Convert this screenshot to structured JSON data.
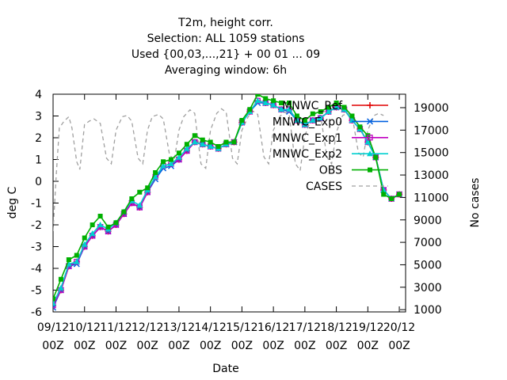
{
  "chart_data": {
    "type": "line",
    "title_lines": [
      "T2m, height corr.",
      "Selection: ALL    1059 stations",
      "Used {00,03,...,21} + 00 01 ... 09",
      "Averaging window:  6h"
    ],
    "xlabel": "Date",
    "ylabel": "deg C",
    "y2label": "No cases",
    "x_ticks": [
      "09/12 00Z",
      "10/12 00Z",
      "11/12 00Z",
      "12/12 00Z",
      "13/12 00Z",
      "14/12 00Z",
      "15/12 00Z",
      "16/12 00Z",
      "17/12 00Z",
      "18/12 00Z",
      "19/12 00Z",
      "20/12 00Z"
    ],
    "x_range_days": [
      0,
      11.2
    ],
    "ylim": [
      -6,
      4
    ],
    "y_ticks": [
      -6,
      -5,
      -4,
      -3,
      -2,
      -1,
      0,
      1,
      2,
      3,
      4
    ],
    "y2lim": [
      800,
      20200
    ],
    "y2_ticks": [
      1000,
      3000,
      5000,
      7000,
      9000,
      11000,
      13000,
      15000,
      17000,
      19000
    ],
    "legend_position": "top-right",
    "series": [
      {
        "name": "MNWC_Ref",
        "color": "#e00000",
        "marker": "plus",
        "x": [
          0,
          0.25,
          0.5,
          0.75,
          1.0,
          1.25,
          1.5,
          1.75,
          2.0,
          2.25,
          2.5,
          2.75,
          3.0,
          3.25,
          3.5,
          3.75,
          4.0,
          4.25,
          4.5,
          4.75,
          5.0,
          5.25,
          5.5,
          5.75,
          6.0,
          6.25,
          6.5,
          6.75,
          7.0,
          7.25,
          7.5,
          7.75,
          8.0,
          8.25,
          8.5,
          8.75,
          9.0,
          9.25,
          9.5,
          9.75,
          10.0,
          10.25,
          10.5,
          10.75,
          11.0
        ],
        "values": [
          -5.7,
          -5.0,
          -3.9,
          -3.7,
          -3.0,
          -2.5,
          -2.1,
          -2.3,
          -2.0,
          -1.5,
          -1.0,
          -1.2,
          -0.5,
          0.2,
          0.7,
          0.8,
          1.0,
          1.4,
          1.8,
          1.7,
          1.6,
          1.5,
          1.7,
          1.8,
          2.7,
          3.2,
          3.7,
          3.6,
          3.5,
          3.3,
          3.3,
          2.8,
          2.6,
          2.8,
          2.9,
          3.2,
          3.4,
          3.3,
          2.8,
          2.4,
          1.8,
          1.1,
          -0.4,
          -0.8,
          -0.6
        ]
      },
      {
        "name": "MNWC_Exp0",
        "color": "#0060e0",
        "marker": "x",
        "x": [
          0,
          0.25,
          0.5,
          0.75,
          1.0,
          1.25,
          1.5,
          1.75,
          2.0,
          2.25,
          2.5,
          2.75,
          3.0,
          3.25,
          3.5,
          3.75,
          4.0,
          4.25,
          4.5,
          4.75,
          5.0,
          5.25,
          5.5,
          5.75,
          6.0,
          6.25,
          6.5,
          6.75,
          7.0,
          7.25,
          7.5,
          7.75,
          8.0,
          8.25,
          8.5,
          8.75,
          9.0,
          9.25,
          9.5,
          9.75,
          10.0,
          10.25,
          10.5,
          10.75,
          11.0
        ],
        "values": [
          -5.8,
          -5.0,
          -3.9,
          -3.8,
          -3.0,
          -2.5,
          -2.1,
          -2.3,
          -2.0,
          -1.5,
          -1.0,
          -1.2,
          -0.5,
          0.1,
          0.6,
          0.7,
          1.0,
          1.4,
          1.8,
          1.7,
          1.6,
          1.5,
          1.7,
          1.8,
          2.7,
          3.2,
          3.6,
          3.6,
          3.5,
          3.3,
          3.2,
          2.8,
          2.6,
          2.8,
          2.9,
          3.2,
          3.4,
          3.3,
          2.8,
          2.4,
          1.8,
          1.1,
          -0.4,
          -0.8,
          -0.6
        ]
      },
      {
        "name": "MNWC_Exp1",
        "color": "#c000c0",
        "marker": "square",
        "x": [
          0,
          0.25,
          0.5,
          0.75,
          1.0,
          1.25,
          1.5,
          1.75,
          2.0,
          2.25,
          2.5,
          2.75,
          3.0,
          3.25,
          3.5,
          3.75,
          4.0,
          4.25,
          4.5,
          4.75,
          5.0,
          5.25,
          5.5,
          5.75,
          6.0,
          6.25,
          6.5,
          6.75,
          7.0,
          7.25,
          7.5,
          7.75,
          8.0,
          8.25,
          8.5,
          8.75,
          9.0,
          9.25,
          9.5,
          9.75,
          10.0,
          10.25,
          10.5,
          10.75,
          11.0
        ],
        "values": [
          -5.7,
          -5.0,
          -3.9,
          -3.7,
          -3.0,
          -2.5,
          -2.1,
          -2.3,
          -2.0,
          -1.5,
          -1.0,
          -1.2,
          -0.5,
          0.2,
          0.7,
          0.8,
          1.0,
          1.4,
          1.8,
          1.7,
          1.6,
          1.5,
          1.7,
          1.8,
          2.7,
          3.2,
          3.7,
          3.6,
          3.5,
          3.3,
          3.3,
          2.8,
          2.6,
          2.8,
          2.9,
          3.2,
          3.4,
          3.3,
          2.8,
          2.4,
          1.8,
          1.1,
          -0.4,
          -0.8,
          -0.6
        ]
      },
      {
        "name": "MNWC_Exp2",
        "color": "#00d0d0",
        "marker": "triangle",
        "x": [
          0,
          0.25,
          0.5,
          0.75,
          1.0,
          1.25,
          1.5,
          1.75,
          2.0,
          2.25,
          2.5,
          2.75,
          3.0,
          3.25,
          3.5,
          3.75,
          4.0,
          4.25,
          4.5,
          4.75,
          5.0,
          5.25,
          5.5,
          5.75,
          6.0,
          6.25,
          6.5,
          6.75,
          7.0,
          7.25,
          7.5,
          7.75,
          8.0,
          8.25,
          8.5,
          8.75,
          9.0,
          9.25,
          9.5,
          9.75,
          10.0,
          10.25,
          10.5,
          10.75,
          11.0
        ],
        "values": [
          -5.6,
          -4.9,
          -3.8,
          -3.7,
          -2.9,
          -2.4,
          -2.0,
          -2.2,
          -1.9,
          -1.4,
          -0.9,
          -1.1,
          -0.4,
          0.2,
          0.7,
          0.8,
          1.1,
          1.5,
          1.8,
          1.7,
          1.6,
          1.5,
          1.7,
          1.8,
          2.7,
          3.2,
          3.7,
          3.6,
          3.5,
          3.3,
          3.3,
          2.8,
          2.6,
          2.8,
          2.9,
          3.2,
          3.4,
          3.3,
          2.8,
          2.4,
          1.8,
          1.1,
          -0.4,
          -0.8,
          -0.6
        ]
      },
      {
        "name": "OBS",
        "color": "#00b000",
        "marker": "filled-square",
        "x": [
          0,
          0.25,
          0.5,
          0.75,
          1.0,
          1.25,
          1.5,
          1.75,
          2.0,
          2.25,
          2.5,
          2.75,
          3.0,
          3.25,
          3.5,
          3.75,
          4.0,
          4.25,
          4.5,
          4.75,
          5.0,
          5.25,
          5.5,
          5.75,
          6.0,
          6.25,
          6.5,
          6.75,
          7.0,
          7.25,
          7.5,
          7.75,
          8.0,
          8.25,
          8.5,
          8.75,
          9.0,
          9.25,
          9.5,
          9.75,
          10.0,
          10.25,
          10.5,
          10.75,
          11.0
        ],
        "values": [
          -5.4,
          -4.5,
          -3.6,
          -3.4,
          -2.6,
          -2.0,
          -1.6,
          -2.1,
          -1.9,
          -1.4,
          -0.8,
          -0.5,
          -0.3,
          0.4,
          0.9,
          1.0,
          1.3,
          1.7,
          2.1,
          1.9,
          1.8,
          1.6,
          1.8,
          1.8,
          2.8,
          3.3,
          4.0,
          3.8,
          3.7,
          3.6,
          3.6,
          3.0,
          2.8,
          3.1,
          3.2,
          3.4,
          3.6,
          3.4,
          3.0,
          2.5,
          2.1,
          1.1,
          -0.6,
          -0.8,
          -0.6
        ]
      },
      {
        "name": "CASES",
        "color": "#a0a0a0",
        "dash": true,
        "axis": "y2",
        "x": [
          0,
          0.1,
          0.2,
          0.35,
          0.5,
          0.6,
          0.75,
          0.85,
          1.0,
          1.15,
          1.3,
          1.5,
          1.7,
          1.85,
          2.0,
          2.2,
          2.35,
          2.5,
          2.7,
          2.85,
          3.0,
          3.15,
          3.35,
          3.5,
          3.7,
          3.85,
          4.0,
          4.15,
          4.35,
          4.5,
          4.7,
          4.85,
          5.0,
          5.2,
          5.35,
          5.5,
          5.7,
          5.85,
          6.0,
          6.2,
          6.35,
          6.5,
          6.7,
          6.85,
          7.0,
          7.2,
          7.35,
          7.5,
          7.7,
          7.85,
          8.0,
          8.2,
          8.35,
          8.5,
          8.7,
          8.85,
          9.0,
          9.2,
          9.35,
          9.5,
          9.7,
          9.85,
          10.0,
          10.2,
          10.35,
          10.5
        ],
        "values": [
          8000,
          13000,
          17200,
          17800,
          18200,
          17200,
          14200,
          13500,
          17500,
          17800,
          18000,
          17600,
          14500,
          14000,
          17000,
          18200,
          18300,
          17800,
          14500,
          14000,
          17000,
          18200,
          18400,
          18000,
          14800,
          14300,
          17000,
          18200,
          18800,
          18500,
          14000,
          13600,
          17000,
          18500,
          18900,
          18600,
          14500,
          14000,
          17000,
          18200,
          18700,
          18400,
          14600,
          14000,
          17000,
          18200,
          18600,
          18400,
          14000,
          13400,
          16500,
          18000,
          18500,
          18300,
          14600,
          14000,
          16800,
          18300,
          18500,
          18300,
          15000,
          14600,
          17000,
          18300,
          18500,
          18300
        ]
      }
    ]
  }
}
